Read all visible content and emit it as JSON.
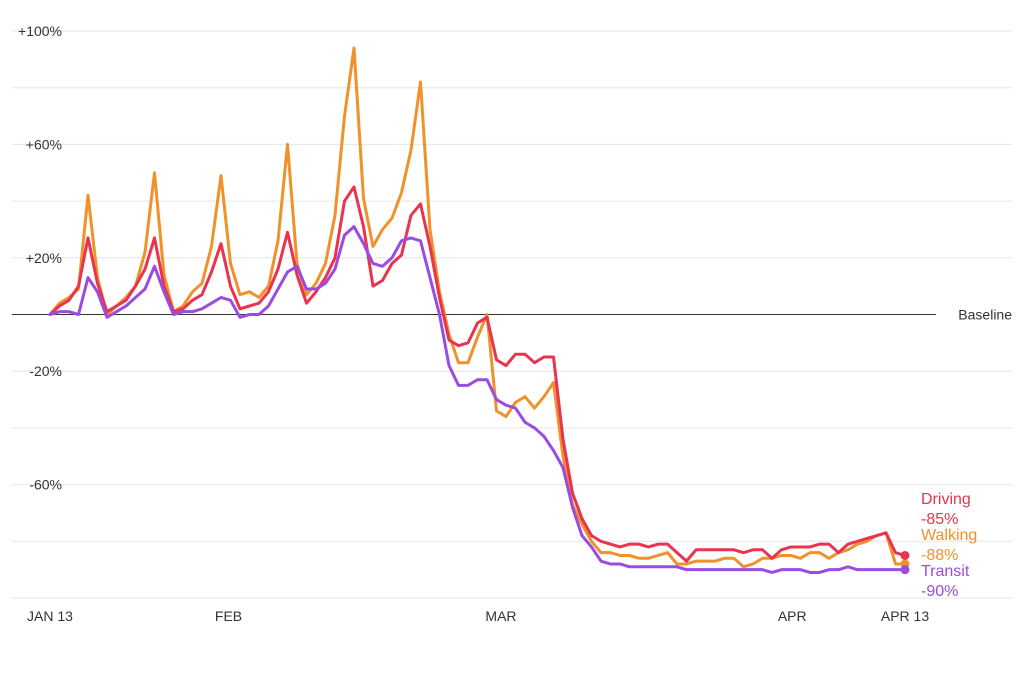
{
  "chart_data": {
    "type": "line",
    "x_start": "2020-01-13",
    "x_end": "2020-04-13",
    "ylim": [
      -100,
      100
    ],
    "y_ticks": [
      {
        "value": 100,
        "label": "+100%"
      },
      {
        "value": 60,
        "label": "+60%"
      },
      {
        "value": 20,
        "label": "+20%"
      },
      {
        "value": -20,
        "label": "-20%"
      },
      {
        "value": -60,
        "label": "-60%"
      }
    ],
    "gridlines": [
      100,
      80,
      60,
      40,
      20,
      -20,
      -40,
      -60,
      -80,
      -100
    ],
    "x_ticks": [
      {
        "date": "2020-01-13",
        "label": "JAN 13"
      },
      {
        "date": "2020-02-01",
        "label": "FEB"
      },
      {
        "date": "2020-03-01",
        "label": "MAR"
      },
      {
        "date": "2020-04-01",
        "label": "APR"
      },
      {
        "date": "2020-04-13",
        "label": "APR 13"
      }
    ],
    "baseline": {
      "value": 0,
      "label": "Baseline"
    },
    "series": [
      {
        "name": "Walking",
        "color": "#F0912A",
        "end_label": "-88%",
        "values": [
          0,
          4,
          6,
          9,
          42,
          13,
          0,
          3,
          6,
          10,
          22,
          50,
          14,
          1,
          3,
          8,
          11,
          24,
          49,
          18,
          7,
          8,
          6,
          10,
          26,
          60,
          18,
          7,
          11,
          18,
          35,
          70,
          94,
          41,
          24,
          30,
          34,
          43,
          58,
          82,
          30,
          8,
          -7,
          -17,
          -17,
          -8,
          0,
          -34,
          -36,
          -31,
          -29,
          -33,
          -29,
          -24,
          -50,
          -67,
          -74,
          -80,
          -84,
          -84,
          -85,
          -85,
          -86,
          -86,
          -85,
          -84,
          -88,
          -88,
          -87,
          -87,
          -87,
          -86,
          -86,
          -89,
          -88,
          -86,
          -86,
          -85,
          -85,
          -86,
          -84,
          -84,
          -86,
          -84,
          -83,
          -81,
          -80,
          -78,
          -77,
          -88,
          -88
        ]
      },
      {
        "name": "Driving",
        "color": "#E8344E",
        "end_label": "-85%",
        "values": [
          0,
          3,
          5,
          10,
          27,
          11,
          1,
          3,
          5,
          10,
          16,
          27,
          10,
          1,
          2,
          5,
          7,
          15,
          25,
          10,
          2,
          3,
          4,
          8,
          16,
          29,
          14,
          4,
          8,
          13,
          20,
          40,
          45,
          31,
          10,
          12,
          18,
          21,
          35,
          39,
          24,
          6,
          -9,
          -11,
          -10,
          -3,
          -1,
          -16,
          -18,
          -14,
          -14,
          -17,
          -15,
          -15,
          -44,
          -63,
          -72,
          -78,
          -80,
          -81,
          -82,
          -81,
          -81,
          -82,
          -81,
          -81,
          -84,
          -87,
          -83,
          -83,
          -83,
          -83,
          -83,
          -84,
          -83,
          -83,
          -86,
          -83,
          -82,
          -82,
          -82,
          -81,
          -81,
          -84,
          -81,
          -80,
          -79,
          -78,
          -77,
          -84,
          -85
        ]
      },
      {
        "name": "Transit",
        "color": "#9B4CE0",
        "end_label": "-90%",
        "values": [
          0,
          1,
          1,
          0,
          13,
          8,
          -1,
          1,
          3,
          6,
          9,
          17,
          8,
          0,
          1,
          1,
          2,
          4,
          6,
          5,
          -1,
          0,
          0,
          3,
          9,
          15,
          17,
          9,
          9,
          11,
          16,
          28,
          31,
          25,
          18,
          17,
          20,
          26,
          27,
          26,
          13,
          0,
          -18,
          -25,
          -25,
          -23,
          -23,
          -30,
          -32,
          -33,
          -38,
          -40,
          -43,
          -48,
          -54,
          -68,
          -78,
          -82,
          -87,
          -88,
          -88,
          -89,
          -89,
          -89,
          -89,
          -89,
          -89,
          -90,
          -90,
          -90,
          -90,
          -90,
          -90,
          -90,
          -90,
          -90,
          -91,
          -90,
          -90,
          -90,
          -91,
          -91,
          -90,
          -90,
          -89,
          -90,
          -90,
          -90,
          -90,
          -90,
          -90
        ]
      }
    ]
  }
}
